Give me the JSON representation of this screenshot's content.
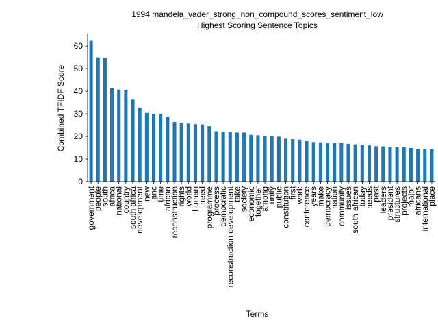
{
  "chart_data": {
    "type": "bar",
    "title": "1994 mandela_vader_strong_non_compound_scores_sentiment_low",
    "subtitle": "Highest Scoring Sentence Topics",
    "xlabel": "Terms",
    "ylabel": "Combined TFIDF Score",
    "ylim": [
      0,
      65.5
    ],
    "yticks": [
      0,
      10,
      20,
      30,
      40,
      50,
      60
    ],
    "bar_color": "#1f77b4",
    "grid": false,
    "categories": [
      "government",
      "people",
      "south",
      "africa",
      "national",
      "country",
      "south africa",
      "development",
      "new",
      "anc",
      "time",
      "african",
      "reconstruction",
      "rights",
      "world",
      "human",
      "need",
      "programme",
      "process",
      "democratic",
      "reconstruction development",
      "take",
      "society",
      "economic",
      "together",
      "among",
      "unity",
      "public",
      "constitution",
      "first",
      "work",
      "conference",
      "years",
      "make",
      "democracy",
      "nation",
      "community",
      "issues",
      "south african",
      "today",
      "needs",
      "past",
      "leaders",
      "president",
      "structures",
      "projects",
      "major",
      "africans",
      "international",
      "place"
    ],
    "values": [
      62.3,
      55.0,
      54.8,
      41.3,
      40.7,
      40.6,
      36.3,
      32.8,
      30.4,
      30.0,
      29.9,
      28.8,
      26.4,
      26.0,
      25.7,
      25.4,
      25.3,
      24.5,
      22.3,
      22.1,
      22.0,
      21.7,
      21.7,
      20.7,
      20.5,
      20.2,
      20.1,
      19.9,
      19.0,
      18.8,
      18.6,
      18.0,
      17.5,
      17.4,
      17.1,
      17.0,
      17.1,
      16.7,
      16.5,
      16.1,
      16.0,
      15.7,
      15.6,
      15.3,
      15.2,
      15.2,
      14.9,
      14.5,
      14.4,
      14.4
    ]
  }
}
